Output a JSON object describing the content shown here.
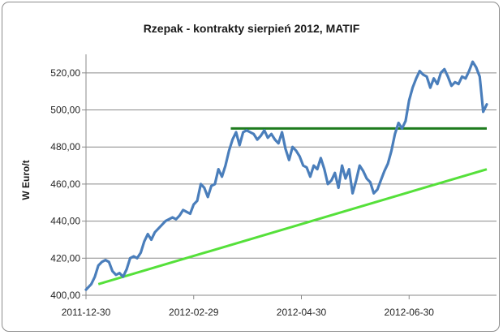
{
  "chart_data": {
    "type": "line",
    "title": "Rzepak - kontrakty sierpień 2012, MATIF",
    "ylabel": "W Euro/t",
    "xlabel": "",
    "ylim": [
      400,
      530
    ],
    "yticks": [
      400,
      420,
      440,
      460,
      480,
      500,
      520
    ],
    "ytick_labels": [
      "400,00",
      "420,00",
      "440,00",
      "460,00",
      "480,00",
      "500,00",
      "520,00"
    ],
    "xlim": [
      "2011-12-30",
      "2012-08-13"
    ],
    "xticks": [
      "2011-12-30",
      "2012-02-29",
      "2012-04-30",
      "2012-06-30"
    ],
    "grid": "horizontal",
    "series": [
      {
        "color": "#4a7ebb",
        "x": [
          "2011-12-30",
          "2012-01-02",
          "2012-01-04",
          "2012-01-06",
          "2012-01-08",
          "2012-01-10",
          "2012-01-12",
          "2012-01-14",
          "2012-01-16",
          "2012-01-18",
          "2012-01-20",
          "2012-01-22",
          "2012-01-24",
          "2012-01-26",
          "2012-01-28",
          "2012-01-30",
          "2012-02-01",
          "2012-02-03",
          "2012-02-05",
          "2012-02-07",
          "2012-02-09",
          "2012-02-11",
          "2012-02-13",
          "2012-02-15",
          "2012-02-17",
          "2012-02-19",
          "2012-02-21",
          "2012-02-23",
          "2012-02-25",
          "2012-02-27",
          "2012-02-29",
          "2012-03-02",
          "2012-03-04",
          "2012-03-06",
          "2012-03-08",
          "2012-03-10",
          "2012-03-12",
          "2012-03-14",
          "2012-03-16",
          "2012-03-18",
          "2012-03-20",
          "2012-03-22",
          "2012-03-24",
          "2012-03-26",
          "2012-03-28",
          "2012-03-30",
          "2012-04-01",
          "2012-04-03",
          "2012-04-05",
          "2012-04-07",
          "2012-04-09",
          "2012-04-11",
          "2012-04-13",
          "2012-04-15",
          "2012-04-17",
          "2012-04-19",
          "2012-04-21",
          "2012-04-23",
          "2012-04-25",
          "2012-04-27",
          "2012-04-29",
          "2012-05-01",
          "2012-05-03",
          "2012-05-05",
          "2012-05-07",
          "2012-05-09",
          "2012-05-11",
          "2012-05-13",
          "2012-05-15",
          "2012-05-17",
          "2012-05-19",
          "2012-05-21",
          "2012-05-23",
          "2012-05-25",
          "2012-05-27",
          "2012-05-29",
          "2012-05-31",
          "2012-06-02",
          "2012-06-04",
          "2012-06-06",
          "2012-06-08",
          "2012-06-10",
          "2012-06-12",
          "2012-06-14",
          "2012-06-16",
          "2012-06-18",
          "2012-06-20",
          "2012-06-22",
          "2012-06-24",
          "2012-06-26",
          "2012-06-28",
          "2012-06-30",
          "2012-07-02",
          "2012-07-04",
          "2012-07-06",
          "2012-07-08",
          "2012-07-10",
          "2012-07-12",
          "2012-07-14",
          "2012-07-16",
          "2012-07-18",
          "2012-07-20",
          "2012-07-22",
          "2012-07-24",
          "2012-07-26",
          "2012-07-28",
          "2012-07-30",
          "2012-08-01",
          "2012-08-03",
          "2012-08-05",
          "2012-08-07",
          "2012-08-09",
          "2012-08-11",
          "2012-08-13"
        ],
        "y": [
          403,
          406,
          410,
          416,
          418,
          419,
          418,
          413,
          411,
          412,
          410,
          414,
          420,
          421,
          420,
          423,
          429,
          433,
          430,
          434,
          436,
          438,
          440,
          441,
          442,
          441,
          443,
          446,
          445,
          444,
          449,
          451,
          460,
          458,
          453,
          459,
          460,
          468,
          464,
          470,
          478,
          484,
          488,
          481,
          488,
          489,
          488,
          487,
          484,
          486,
          489,
          485,
          487,
          484,
          482,
          488,
          479,
          473,
          480,
          478,
          475,
          470,
          469,
          464,
          470,
          468,
          474,
          468,
          460,
          462,
          466,
          458,
          470,
          463,
          468,
          455,
          462,
          470,
          467,
          463,
          461,
          455,
          457,
          462,
          467,
          471,
          478,
          487,
          493,
          490,
          494,
          505,
          512,
          517,
          521,
          519,
          518,
          512,
          517,
          514,
          520,
          522,
          518,
          513,
          515,
          514,
          518,
          517,
          521,
          526,
          523,
          518,
          499,
          503
        ]
      }
    ],
    "annotations": [
      {
        "type": "resistance-line",
        "color": "#1e7b1e",
        "x": [
          "2012-03-21",
          "2012-08-13"
        ],
        "y": [
          490,
          490
        ]
      },
      {
        "type": "support-trendline",
        "color": "#55e03a",
        "x": [
          "2012-01-06",
          "2012-08-13"
        ],
        "y": [
          406,
          468
        ]
      }
    ]
  }
}
